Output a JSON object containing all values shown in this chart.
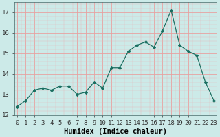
{
  "x": [
    0,
    1,
    2,
    3,
    4,
    5,
    6,
    7,
    8,
    9,
    10,
    11,
    12,
    13,
    14,
    15,
    16,
    17,
    18,
    19,
    20,
    21,
    22,
    23
  ],
  "y": [
    12.4,
    12.7,
    13.2,
    13.3,
    13.2,
    13.4,
    13.4,
    13.0,
    13.1,
    13.6,
    13.3,
    14.3,
    14.3,
    15.1,
    15.4,
    15.55,
    15.3,
    16.1,
    17.1,
    15.4,
    15.1,
    14.9,
    13.6,
    12.7
  ],
  "line_color": "#1a6e60",
  "marker": "D",
  "marker_size": 2.2,
  "bg_color": "#cceae8",
  "grid_color_major": "#e8a0a0",
  "grid_color_minor": "#e8b8b8",
  "xlabel": "Humidex (Indice chaleur)",
  "ylim": [
    12,
    17.5
  ],
  "yticks": [
    12,
    13,
    14,
    15,
    16,
    17
  ],
  "xticks": [
    0,
    1,
    2,
    3,
    4,
    5,
    6,
    7,
    8,
    9,
    10,
    11,
    12,
    13,
    14,
    15,
    16,
    17,
    18,
    19,
    20,
    21,
    22,
    23
  ],
  "xlim": [
    -0.3,
    23.3
  ],
  "axis_fontsize": 7.5,
  "tick_fontsize": 6.5
}
